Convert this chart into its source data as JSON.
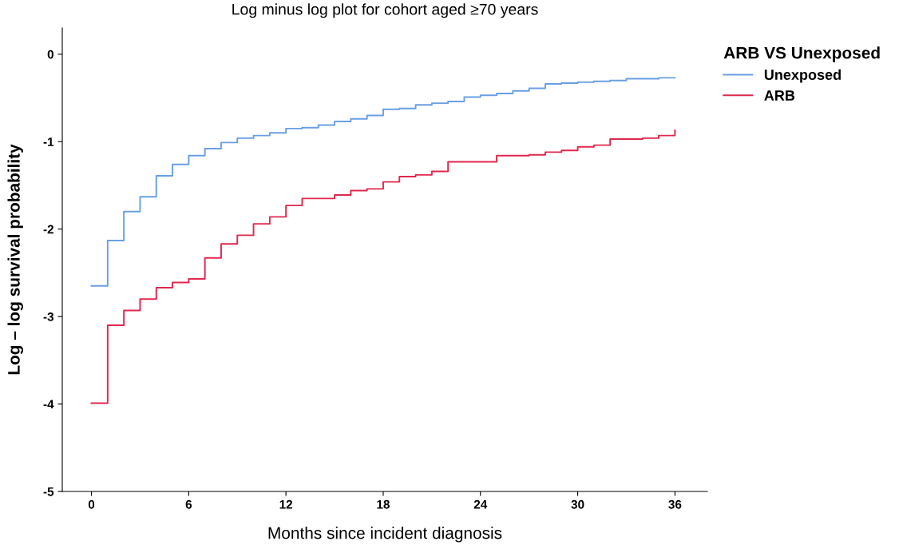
{
  "chart_data": {
    "type": "step",
    "title": "Log minus log plot for cohort aged ≥70 years",
    "xlabel": "Months since incident diagnosis",
    "ylabel": "Log – log survival probability",
    "legend_title": "ARB VS Unexposed",
    "x": [
      0,
      1,
      2,
      3,
      4,
      5,
      6,
      7,
      8,
      9,
      10,
      11,
      12,
      13,
      14,
      15,
      16,
      17,
      18,
      19,
      20,
      21,
      22,
      23,
      24,
      25,
      26,
      27,
      28,
      29,
      30,
      31,
      32,
      33,
      34,
      35,
      36
    ],
    "series": [
      {
        "name": "Unexposed",
        "color": "#6a9fe3",
        "values": [
          -2.65,
          -2.13,
          -1.8,
          -1.63,
          -1.39,
          -1.26,
          -1.16,
          -1.08,
          -1.01,
          -0.96,
          -0.93,
          -0.9,
          -0.85,
          -0.84,
          -0.81,
          -0.77,
          -0.74,
          -0.7,
          -0.63,
          -0.62,
          -0.58,
          -0.56,
          -0.54,
          -0.49,
          -0.47,
          -0.45,
          -0.42,
          -0.39,
          -0.34,
          -0.33,
          -0.32,
          -0.31,
          -0.3,
          -0.28,
          -0.28,
          -0.27,
          -0.27
        ]
      },
      {
        "name": "ARB",
        "color": "#e0284f",
        "values": [
          -3.99,
          -3.1,
          -2.93,
          -2.8,
          -2.67,
          -2.61,
          -2.57,
          -2.33,
          -2.17,
          -2.07,
          -1.94,
          -1.86,
          -1.73,
          -1.65,
          -1.65,
          -1.61,
          -1.56,
          -1.54,
          -1.46,
          -1.4,
          -1.38,
          -1.34,
          -1.23,
          -1.23,
          -1.23,
          -1.16,
          -1.16,
          -1.15,
          -1.12,
          -1.1,
          -1.06,
          -1.04,
          -0.97,
          -0.97,
          -0.96,
          -0.93,
          -0.87
        ]
      }
    ],
    "xlim": [
      -1.8,
      38
    ],
    "xticks": [
      0,
      6,
      12,
      18,
      24,
      30,
      36
    ],
    "ylim": [
      -5,
      0.3
    ],
    "yticks": [
      -5,
      -4,
      -3,
      -2,
      -1,
      0
    ],
    "grid": false,
    "legend": "top right",
    "marker": "none",
    "line_style": "solid"
  }
}
